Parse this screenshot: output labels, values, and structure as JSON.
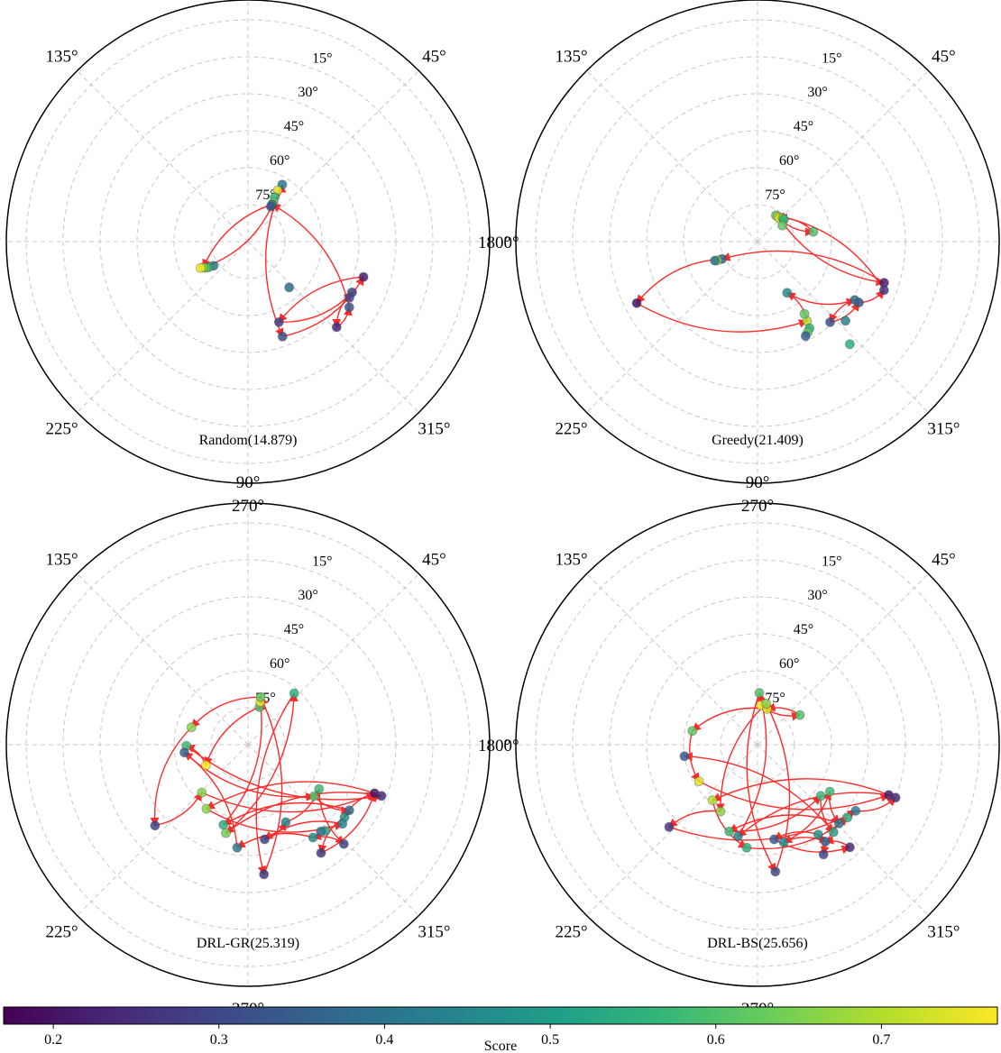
{
  "colorbar": {
    "label": "Score",
    "ticks": [
      0.2,
      0.3,
      0.4,
      0.5,
      0.6,
      0.7
    ],
    "range": [
      0.17,
      0.77
    ],
    "colormap": [
      "#440154",
      "#482878",
      "#3e4a89",
      "#31688e",
      "#26828e",
      "#1f9e89",
      "#35b779",
      "#6ece58",
      "#b5de2b",
      "#fde725"
    ]
  },
  "polar_axes": {
    "angle_ticks": [
      "0°",
      "45°",
      "90°",
      "135°",
      "180°",
      "225°",
      "270°",
      "315°"
    ],
    "elevation_ticks": [
      "15°",
      "30°",
      "45°",
      "60°",
      "75°"
    ],
    "grid": true,
    "path_color": "#ff2a2a"
  },
  "chart_data": [
    {
      "type": "scatter",
      "title": "Random(14.879)",
      "coords": "polar: [azimuth_deg, elevation_deg, score]",
      "points": [
        [
          59,
          63,
          0.42
        ],
        [
          60,
          66,
          0.74
        ],
        [
          59,
          69,
          0.55
        ],
        [
          57,
          71,
          0.64
        ],
        [
          57,
          72,
          0.4
        ],
        [
          57,
          73,
          0.33
        ],
        [
          215,
          73,
          0.4
        ],
        [
          213,
          71,
          0.55
        ],
        [
          212,
          70,
          0.62
        ],
        [
          210,
          69,
          0.66
        ],
        [
          209,
          68,
          0.76
        ],
        [
          312,
          65,
          0.38
        ],
        [
          343,
          41,
          0.22
        ],
        [
          334,
          43,
          0.28
        ],
        [
          331,
          43,
          0.3
        ],
        [
          327,
          41,
          0.33
        ],
        [
          316,
          40,
          0.24
        ],
        [
          290,
          49,
          0.32
        ],
        [
          291,
          55,
          0.28
        ]
      ],
      "path": [
        0,
        17,
        12,
        18,
        13,
        16,
        15,
        4,
        9,
        3,
        0
      ]
    },
    {
      "type": "scatter",
      "title": "Greedy(21.409)",
      "coords": "polar: [azimuth_deg, elevation_deg, score]",
      "points": [
        [
          55,
          77,
          0.62
        ],
        [
          51,
          77,
          0.7
        ],
        [
          47,
          77,
          0.74
        ],
        [
          43,
          76,
          0.66
        ],
        [
          40,
          76,
          0.55
        ],
        [
          33,
          78,
          0.62
        ],
        [
          10,
          67,
          0.6
        ],
        [
          342,
          36,
          0.22
        ],
        [
          339,
          35,
          0.26
        ],
        [
          206,
          74,
          0.36
        ],
        [
          205,
          72,
          0.66
        ],
        [
          204,
          71,
          0.4
        ],
        [
          207,
          35,
          0.2
        ],
        [
          300,
          66,
          0.46
        ],
        [
          329,
          44,
          0.4
        ],
        [
          329,
          42,
          0.34
        ],
        [
          312,
          46,
          0.32
        ],
        [
          318,
          42,
          0.44
        ],
        [
          302,
          52,
          0.7
        ],
        [
          301,
          49,
          0.55
        ],
        [
          299,
          48,
          0.62
        ],
        [
          297,
          47,
          0.35
        ],
        [
          303,
          55,
          0.62
        ],
        [
          312,
          34,
          0.55
        ]
      ],
      "path": [
        1,
        6,
        2,
        7,
        9,
        12,
        18,
        13,
        14,
        16,
        15,
        8,
        0
      ]
    },
    {
      "type": "scatter",
      "title": "DRL-GR(25.319)",
      "coords": "polar: [azimuth_deg, elevation_deg, score]",
      "points": [
        [
          73,
          74,
          0.6
        ],
        [
          74,
          72,
          0.76
        ],
        [
          75,
          70,
          0.62
        ],
        [
          48,
          62,
          0.55
        ],
        [
          163,
          66,
          0.66
        ],
        [
          181,
          65,
          0.58
        ],
        [
          187,
          64,
          0.35
        ],
        [
          206,
          71,
          0.78
        ],
        [
          226,
          63,
          0.66
        ],
        [
          237,
          59,
          0.66
        ],
        [
          221,
          40,
          0.3
        ],
        [
          253,
          56,
          0.55
        ],
        [
          256,
          53,
          0.64
        ],
        [
          264,
          48,
          0.42
        ],
        [
          280,
          51,
          0.28
        ],
        [
          277,
          37,
          0.26
        ],
        [
          339,
          35,
          0.2
        ],
        [
          339,
          32,
          0.24
        ],
        [
          328,
          56,
          0.58
        ],
        [
          322,
          56,
          0.6
        ],
        [
          323,
          41,
          0.48
        ],
        [
          327,
          41,
          0.38
        ],
        [
          320,
          40,
          0.44
        ],
        [
          312,
          43,
          0.52
        ],
        [
          305,
          44,
          0.46
        ],
        [
          310,
          44,
          0.4
        ],
        [
          304,
          37,
          0.27
        ],
        [
          314,
          34,
          0.3
        ],
        [
          296,
          55,
          0.44
        ]
      ],
      "path": [
        0,
        7,
        5,
        17,
        12,
        3,
        15,
        2,
        4,
        10,
        8,
        16,
        20,
        26,
        16,
        9,
        22,
        14,
        28,
        18,
        27,
        24,
        13,
        6,
        19,
        21,
        11,
        1
      ]
    },
    {
      "type": "scatter",
      "title": "DRL-BS(25.656)",
      "coords": "polar: [azimuth_deg, elevation_deg, score]",
      "points": [
        [
          85,
          74,
          0.76
        ],
        [
          75,
          75,
          0.74
        ],
        [
          78,
          73,
          0.66
        ],
        [
          88,
          69,
          0.6
        ],
        [
          35,
          69,
          0.6
        ],
        [
          168,
          63,
          0.62
        ],
        [
          189,
          60,
          0.35
        ],
        [
          212,
          62,
          0.74
        ],
        [
          231,
          61,
          0.7
        ],
        [
          223,
          41,
          0.27
        ],
        [
          241,
          59,
          0.66
        ],
        [
          252,
          53,
          0.58
        ],
        [
          258,
          52,
          0.44
        ],
        [
          264,
          48,
          0.55
        ],
        [
          280,
          51,
          0.34
        ],
        [
          278,
          38,
          0.3
        ],
        [
          339,
          33,
          0.21
        ],
        [
          339,
          30,
          0.25
        ],
        [
          327,
          55,
          0.58
        ],
        [
          321,
          57,
          0.58
        ],
        [
          321,
          43,
          0.55
        ],
        [
          326,
          42,
          0.42
        ],
        [
          316,
          44,
          0.4
        ],
        [
          311,
          43,
          0.52
        ],
        [
          304,
          46,
          0.48
        ],
        [
          305,
          42,
          0.36
        ],
        [
          301,
          38,
          0.3
        ],
        [
          312,
          34,
          0.24
        ],
        [
          285,
          49,
          0.46
        ]
      ],
      "path": [
        0,
        4,
        1,
        5,
        7,
        16,
        12,
        3,
        15,
        2,
        10,
        9,
        21,
        17,
        8,
        13,
        20,
        26,
        24,
        14,
        27,
        25,
        28,
        18,
        22,
        11,
        19,
        23,
        6
      ]
    }
  ]
}
